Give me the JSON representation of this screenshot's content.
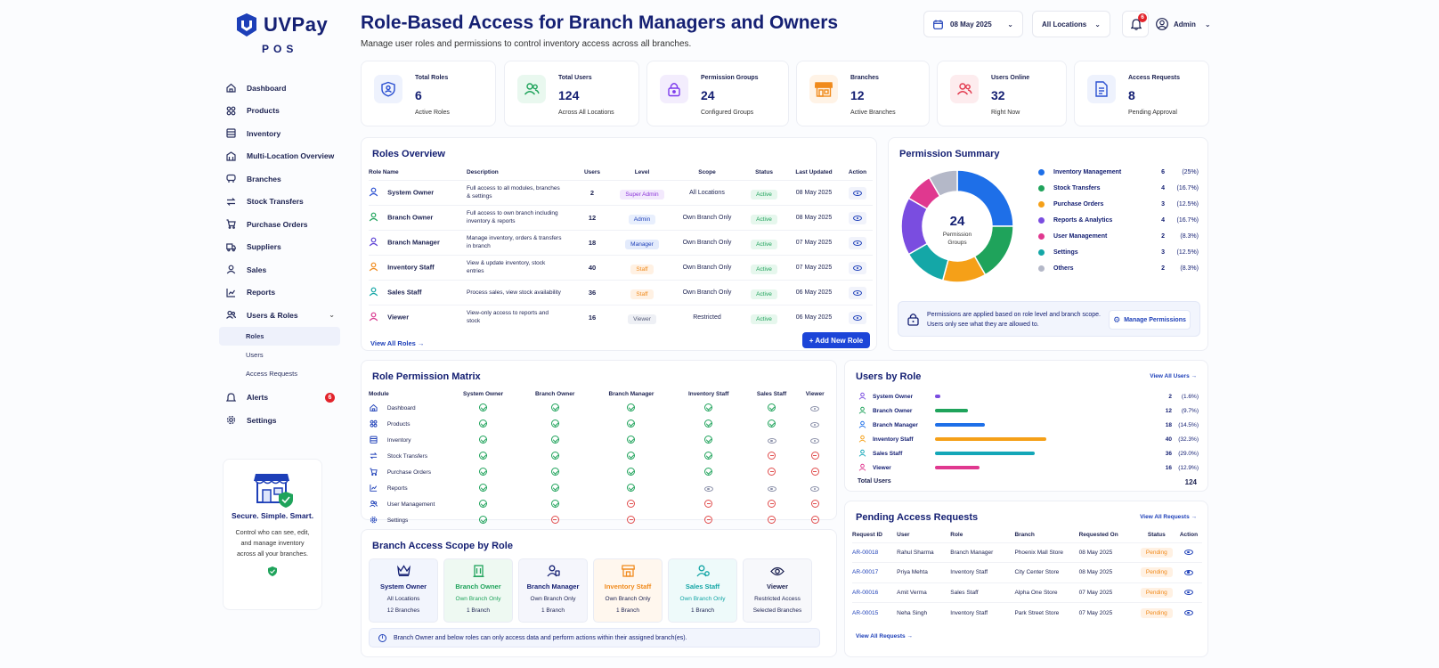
{
  "brand": {
    "name": "UVPay",
    "sub": "POS"
  },
  "nav": {
    "items": [
      {
        "label": "Dashboard",
        "icon": "home-icon"
      },
      {
        "label": "Products",
        "icon": "products-icon"
      },
      {
        "label": "Inventory",
        "icon": "inventory-icon"
      },
      {
        "label": "Multi-Location Overview",
        "icon": "building-icon"
      },
      {
        "label": "Branches",
        "icon": "branches-icon"
      },
      {
        "label": "Stock Transfers",
        "icon": "transfer-icon"
      },
      {
        "label": "Purchase Orders",
        "icon": "cart-icon"
      },
      {
        "label": "Suppliers",
        "icon": "truck-icon"
      },
      {
        "label": "Sales",
        "icon": "user-icon"
      },
      {
        "label": "Reports",
        "icon": "chart-icon"
      },
      {
        "label": "Users & Roles",
        "icon": "users-icon"
      }
    ],
    "sub": [
      "Roles",
      "Users",
      "Access Requests"
    ],
    "alerts": {
      "label": "Alerts",
      "badge": "6"
    },
    "settings": "Settings"
  },
  "promo": {
    "title": "Secure. Simple. Smart.",
    "text": "Control who can see, edit, and manage inventory across all your branches."
  },
  "header": {
    "title": "Role-Based Access for Branch Managers and Owners",
    "subtitle": "Manage user roles and permissions to control inventory access across all branches.",
    "date": "08 May 2025",
    "location": "All Locations",
    "notif": "6",
    "user": "Admin"
  },
  "stats": [
    {
      "label": "Total Roles",
      "value": "6",
      "sub": "Active Roles",
      "color": "#2a4fd1",
      "bg": "#eef2fd"
    },
    {
      "label": "Total Users",
      "value": "124",
      "sub": "Across All Locations",
      "color": "#1fa35b",
      "bg": "#e9f8ef"
    },
    {
      "label": "Permission Groups",
      "value": "24",
      "sub": "Configured Groups",
      "color": "#7c3aed",
      "bg": "#f3edfd"
    },
    {
      "label": "Branches",
      "value": "12",
      "sub": "Active Branches",
      "color": "#f08a1c",
      "bg": "#fff3e6"
    },
    {
      "label": "Users Online",
      "value": "32",
      "sub": "Right Now",
      "color": "#e23a4e",
      "bg": "#fdecee"
    },
    {
      "label": "Access Requests",
      "value": "8",
      "sub": "Pending Approval",
      "color": "#2a4fd1",
      "bg": "#eef2fd"
    }
  ],
  "roles": {
    "title": "Roles Overview",
    "columns": [
      "Role Name",
      "Description",
      "Users",
      "Level",
      "Scope",
      "Status",
      "Last Updated",
      "Action"
    ],
    "rows": [
      {
        "name": "System Owner",
        "desc": "Full access to all modules, branches & settings",
        "users": "2",
        "level": "Super Admin",
        "scope": "All Locations",
        "status": "Active",
        "updated": "08 May 2025",
        "color": "#2a4fd1",
        "lvlbg": "#f3e9fd",
        "lvlfg": "#8b34d8"
      },
      {
        "name": "Branch Owner",
        "desc": "Full access to own branch including inventory & reports",
        "users": "12",
        "level": "Admin",
        "scope": "Own Branch Only",
        "status": "Active",
        "updated": "08 May 2025",
        "color": "#1fa35b",
        "lvlbg": "#e8effd",
        "lvlfg": "#1d3fb8"
      },
      {
        "name": "Branch Manager",
        "desc": "Manage inventory, orders & transfers in branch",
        "users": "18",
        "level": "Manager",
        "scope": "Own Branch Only",
        "status": "Active",
        "updated": "07 May 2025",
        "color": "#5b3fd4",
        "lvlbg": "#e3ebfc",
        "lvlfg": "#1d3fb8"
      },
      {
        "name": "Inventory Staff",
        "desc": "View & update inventory, stock entries",
        "users": "40",
        "level": "Staff",
        "scope": "Own Branch Only",
        "status": "Active",
        "updated": "07 May 2025",
        "color": "#f08a1c",
        "lvlbg": "#fff1e3",
        "lvlfg": "#f08a1c"
      },
      {
        "name": "Sales Staff",
        "desc": "Process sales, view stock availability",
        "users": "36",
        "level": "Staff",
        "scope": "Own Branch Only",
        "status": "Active",
        "updated": "06 May 2025",
        "color": "#12a5a5",
        "lvlbg": "#fff1e3",
        "lvlfg": "#f08a1c"
      },
      {
        "name": "Viewer",
        "desc": "View-only access to reports and stock",
        "users": "16",
        "level": "Viewer",
        "scope": "Restricted",
        "status": "Active",
        "updated": "06 May 2025",
        "color": "#d9388f",
        "lvlbg": "#eef0f5",
        "lvlfg": "#555b78"
      }
    ],
    "view_all": "View All Roles →",
    "add_btn": "+  Add New Role"
  },
  "perm_summary": {
    "title": "Permission Summary",
    "center_value": "24",
    "center_label": "Permission Groups",
    "items": [
      {
        "label": "Inventory Management",
        "value": "6",
        "pct": "(25%)",
        "count": 6,
        "color": "#1e6fe8"
      },
      {
        "label": "Stock Transfers",
        "value": "4",
        "pct": "(16.7%)",
        "count": 4,
        "color": "#1fa35b"
      },
      {
        "label": "Purchase Orders",
        "value": "3",
        "pct": "(12.5%)",
        "count": 3,
        "color": "#f5a018"
      },
      {
        "label": "Reports & Analytics",
        "value": "4",
        "pct": "(16.7%)",
        "count": 4,
        "color": "#7a4de0"
      },
      {
        "label": "User Management",
        "value": "2",
        "pct": "(8.3%)",
        "count": 2,
        "color": "#e0388f"
      },
      {
        "label": "Settings",
        "value": "3",
        "pct": "(12.5%)",
        "count": 3,
        "color": "#14a7a7"
      },
      {
        "label": "Others",
        "value": "2",
        "pct": "(8.3%)",
        "count": 2,
        "color": "#b4b8c8"
      }
    ],
    "chart_order": [
      0,
      1,
      2,
      5,
      3,
      4,
      6
    ],
    "note": "Permissions are applied based on role level and branch scope. Users only see what they are allowed to.",
    "manage_btn": "Manage Permissions"
  },
  "matrix": {
    "title": "Role Permission Matrix",
    "columns": [
      "Module",
      "System Owner",
      "Branch Owner",
      "Branch Manager",
      "Inventory Staff",
      "Sales Staff",
      "Viewer"
    ],
    "rows": [
      {
        "module": "Dashboard",
        "icon": "home-icon",
        "cells": [
          "y",
          "y",
          "y",
          "y",
          "y",
          "v"
        ]
      },
      {
        "module": "Products",
        "icon": "products-icon",
        "cells": [
          "y",
          "y",
          "y",
          "y",
          "y",
          "v"
        ]
      },
      {
        "module": "Inventory",
        "icon": "inventory-icon",
        "cells": [
          "y",
          "y",
          "y",
          "y",
          "v",
          "v"
        ]
      },
      {
        "module": "Stock Transfers",
        "icon": "transfer-icon",
        "cells": [
          "y",
          "y",
          "y",
          "y",
          "n",
          "n"
        ]
      },
      {
        "module": "Purchase Orders",
        "icon": "cart-icon",
        "cells": [
          "y",
          "y",
          "y",
          "y",
          "n",
          "n"
        ]
      },
      {
        "module": "Reports",
        "icon": "chart-icon",
        "cells": [
          "y",
          "y",
          "y",
          "v",
          "v",
          "v"
        ]
      },
      {
        "module": "User Management",
        "icon": "users-icon",
        "cells": [
          "y",
          "y",
          "n",
          "n",
          "n",
          "n"
        ]
      },
      {
        "module": "Settings",
        "icon": "gear-icon",
        "cells": [
          "y",
          "n",
          "n",
          "n",
          "n",
          "n"
        ]
      }
    ]
  },
  "users_by_role": {
    "title": "Users by Role",
    "view_all": "View All Users →",
    "rows": [
      {
        "role": "System Owner",
        "count": "2",
        "pct": "(1.6%)",
        "value": 2,
        "color": "#7a4de0"
      },
      {
        "role": "Branch Owner",
        "count": "12",
        "pct": "(9.7%)",
        "value": 12,
        "color": "#1fa35b"
      },
      {
        "role": "Branch Manager",
        "count": "18",
        "pct": "(14.5%)",
        "value": 18,
        "color": "#1e6fe8"
      },
      {
        "role": "Inventory Staff",
        "count": "40",
        "pct": "(32.3%)",
        "value": 40,
        "color": "#f5a018"
      },
      {
        "role": "Sales Staff",
        "count": "36",
        "pct": "(29.0%)",
        "value": 36,
        "color": "#14a7b8"
      },
      {
        "role": "Viewer",
        "count": "16",
        "pct": "(12.9%)",
        "value": 16,
        "color": "#e0388f"
      }
    ],
    "total_label": "Total Users",
    "total": "124"
  },
  "scope": {
    "title": "Branch Access Scope by Role",
    "cards": [
      {
        "role": "System Owner",
        "line1": "All Locations",
        "line2": "12 Branches",
        "color": "#152073",
        "bg": "#f2f5fd",
        "icon": "crown-icon"
      },
      {
        "role": "Branch Owner",
        "line1": "Own Branch Only",
        "line2": "1 Branch",
        "color": "#1fa35b",
        "bg": "#eef9f2",
        "icon": "building-icon"
      },
      {
        "role": "Branch Manager",
        "line1": "Own Branch Only",
        "line2": "1 Branch",
        "color": "#152073",
        "bg": "#f5f6fc",
        "icon": "manager-icon"
      },
      {
        "role": "Inventory Staff",
        "line1": "Own Branch Only",
        "line2": "1 Branch",
        "color": "#f08a1c",
        "bg": "#fff7ee",
        "icon": "store-icon"
      },
      {
        "role": "Sales Staff",
        "line1": "Own Branch Only",
        "line2": "1 Branch",
        "color": "#12a5a5",
        "bg": "#eefafa",
        "icon": "sales-icon"
      },
      {
        "role": "Viewer",
        "line1": "Restricted Access",
        "line2": "Selected Branches",
        "color": "#1b2150",
        "bg": "#f7f8fb",
        "icon": "eye-icon"
      }
    ],
    "note": "Branch Owner and below roles can only access data and perform actions within their assigned branch(es)."
  },
  "requests": {
    "title": "Pending Access Requests",
    "view_all": "View All Requests →",
    "columns": [
      "Request ID",
      "User",
      "Role",
      "Branch",
      "Requested On",
      "Status",
      "Action"
    ],
    "rows": [
      {
        "id": "AR-00018",
        "user": "Rahul Sharma",
        "role": "Branch Manager",
        "branch": "Phoenix Mall Store",
        "date": "08 May 2025",
        "status": "Pending"
      },
      {
        "id": "AR-00017",
        "user": "Priya Mehta",
        "role": "Inventory Staff",
        "branch": "City Center Store",
        "date": "08 May 2025",
        "status": "Pending"
      },
      {
        "id": "AR-00016",
        "user": "Amit Verma",
        "role": "Sales Staff",
        "branch": "Alpha One Store",
        "date": "07 May 2025",
        "status": "Pending"
      },
      {
        "id": "AR-00015",
        "user": "Neha Singh",
        "role": "Inventory Staff",
        "branch": "Park Street Store",
        "date": "07 May 2025",
        "status": "Pending"
      }
    ],
    "footer": "View All Requests →"
  }
}
